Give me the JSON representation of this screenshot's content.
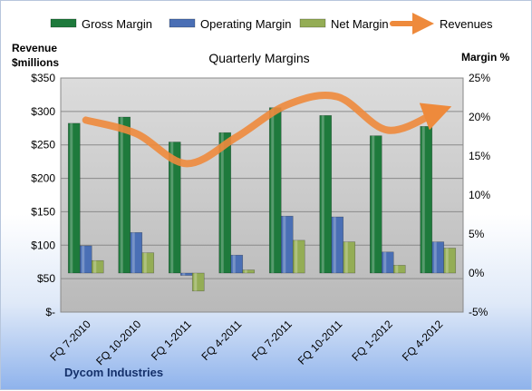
{
  "chart_data": {
    "type": "bar",
    "title": "Quarterly Margins",
    "company": "Dycom Industries",
    "left_axis_title_line1": "Revenue",
    "left_axis_title_line2": "$millions",
    "right_axis_title": "Margin %",
    "categories": [
      "FQ 7-2010",
      "FQ 10-2010",
      "FQ 1-2011",
      "FQ 4-2011",
      "FQ 7-2011",
      "FQ 10-2011",
      "FQ 1-2012",
      "FQ 4-2012"
    ],
    "left_ticks": [
      "$-",
      "$50",
      "$100",
      "$150",
      "$200",
      "$250",
      "$300",
      "$350"
    ],
    "right_ticks": [
      "-5%",
      "0%",
      "5%",
      "10%",
      "15%",
      "20%",
      "25%"
    ],
    "ylim_left": [
      0,
      350
    ],
    "ylim_right": [
      -5,
      25
    ],
    "grid": true,
    "legend_placement": "top",
    "series": [
      {
        "name": "Gross Margin",
        "axis": "right",
        "kind": "bar",
        "color": "#1e7a3c",
        "values": [
          19.2,
          20.0,
          16.8,
          18.0,
          21.2,
          20.2,
          17.6,
          18.8
        ]
      },
      {
        "name": "Operating Margin",
        "axis": "right",
        "kind": "bar",
        "color": "#4a6fb5",
        "values": [
          3.5,
          5.2,
          -0.3,
          2.3,
          7.3,
          7.2,
          2.7,
          4.0
        ]
      },
      {
        "name": "Net Margin",
        "axis": "right",
        "kind": "bar",
        "color": "#94ad55",
        "values": [
          1.6,
          2.6,
          -2.3,
          0.4,
          4.2,
          4.0,
          1.0,
          3.2
        ]
      },
      {
        "name": "Revenues",
        "axis": "left",
        "kind": "line",
        "color": "#ee8a3c",
        "values": [
          287,
          267,
          222,
          262,
          310,
          322,
          272,
          300
        ]
      }
    ]
  }
}
